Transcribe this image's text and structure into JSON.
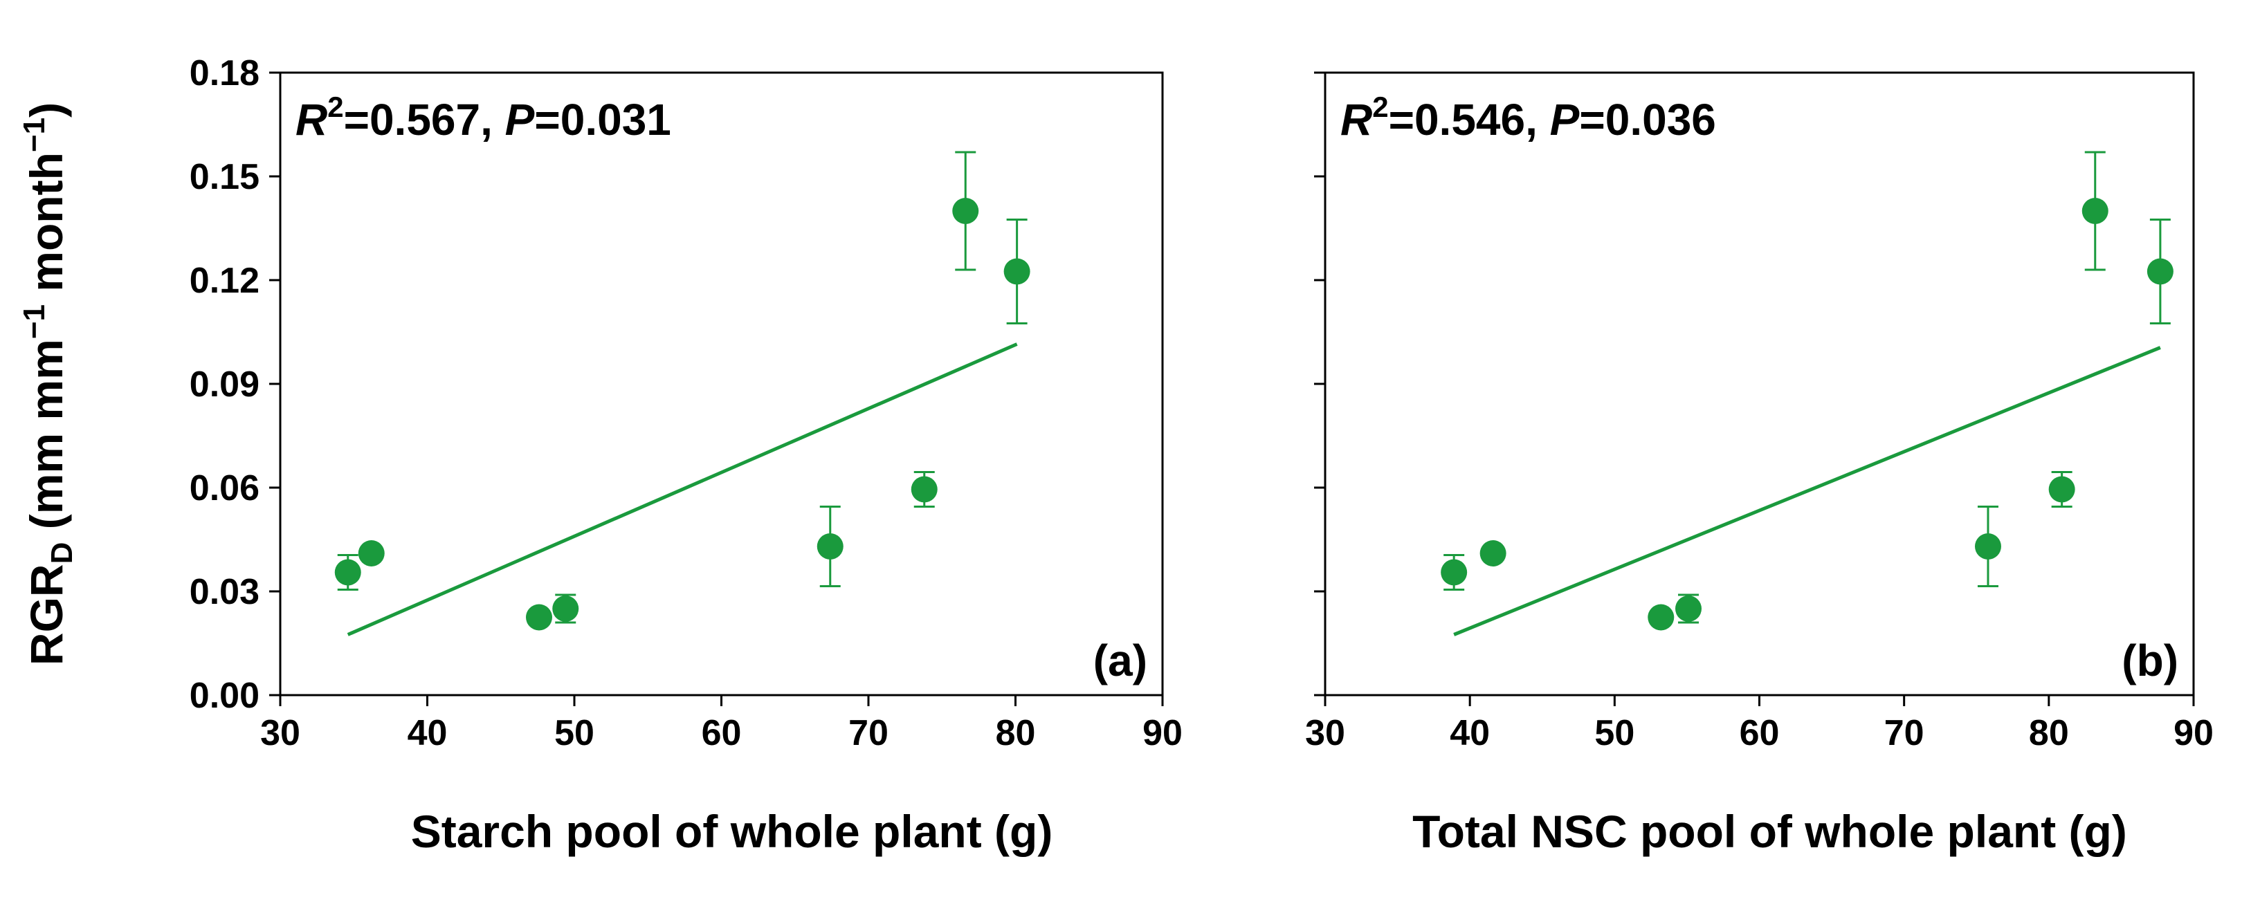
{
  "ylabel": {
    "main": "RGR",
    "sub": "D",
    "units_a": " (mm mm",
    "exp1": "−1",
    "units_b": " month",
    "exp2": "−1",
    "close": ")"
  },
  "colors": {
    "marker": "#1a9a3d",
    "line": "#1a9a3d",
    "axis": "#000000"
  },
  "chart_data": [
    {
      "type": "scatter",
      "panel_label": "(a)",
      "xlabel": "Starch pool of whole plant (g)",
      "xlim": [
        30,
        90
      ],
      "ylim": [
        0.0,
        0.18
      ],
      "xticks": [
        "30",
        "40",
        "50",
        "60",
        "70",
        "80",
        "90"
      ],
      "yticks": [
        "0.00",
        "0.03",
        "0.06",
        "0.09",
        "0.12",
        "0.15",
        "0.18"
      ],
      "stats": {
        "r_label": "R",
        "r_exp": "2",
        "r_value": "=0.567, ",
        "p_label": "P",
        "p_value": "=0.031"
      },
      "points": [
        {
          "x": 34.6,
          "y": 0.0355,
          "err": 0.005
        },
        {
          "x": 36.2,
          "y": 0.041,
          "err": 0.0
        },
        {
          "x": 47.6,
          "y": 0.0225,
          "err": 0.0
        },
        {
          "x": 49.4,
          "y": 0.025,
          "err": 0.004
        },
        {
          "x": 67.4,
          "y": 0.043,
          "err": 0.0115
        },
        {
          "x": 73.8,
          "y": 0.0595,
          "err": 0.005
        },
        {
          "x": 76.6,
          "y": 0.14,
          "err": 0.017
        },
        {
          "x": 80.1,
          "y": 0.1225,
          "err": 0.015
        }
      ],
      "fit": {
        "x": [
          34.6,
          80.1
        ],
        "y": [
          0.0175,
          0.1015
        ]
      }
    },
    {
      "type": "scatter",
      "panel_label": "(b)",
      "xlabel": "Total NSC pool of whole plant (g)",
      "xlim": [
        30,
        90
      ],
      "ylim": [
        0.0,
        0.18
      ],
      "xticks": [
        "30",
        "40",
        "50",
        "60",
        "70",
        "80",
        "90"
      ],
      "yticks": [
        "0.00",
        "0.03",
        "0.06",
        "0.09",
        "0.12",
        "0.15",
        "0.18"
      ],
      "stats": {
        "r_label": "R",
        "r_exp": "2",
        "r_value": "=0.546, ",
        "p_label": "P",
        "p_value": "=0.036"
      },
      "points": [
        {
          "x": 38.9,
          "y": 0.0355,
          "err": 0.005
        },
        {
          "x": 41.6,
          "y": 0.041,
          "err": 0.0
        },
        {
          "x": 53.2,
          "y": 0.0225,
          "err": 0.0
        },
        {
          "x": 55.1,
          "y": 0.025,
          "err": 0.004
        },
        {
          "x": 75.8,
          "y": 0.043,
          "err": 0.0115
        },
        {
          "x": 80.9,
          "y": 0.0595,
          "err": 0.005
        },
        {
          "x": 83.2,
          "y": 0.14,
          "err": 0.017
        },
        {
          "x": 87.7,
          "y": 0.1225,
          "err": 0.015
        }
      ],
      "fit": {
        "x": [
          38.9,
          87.7
        ],
        "y": [
          0.0175,
          0.1005
        ]
      }
    }
  ]
}
